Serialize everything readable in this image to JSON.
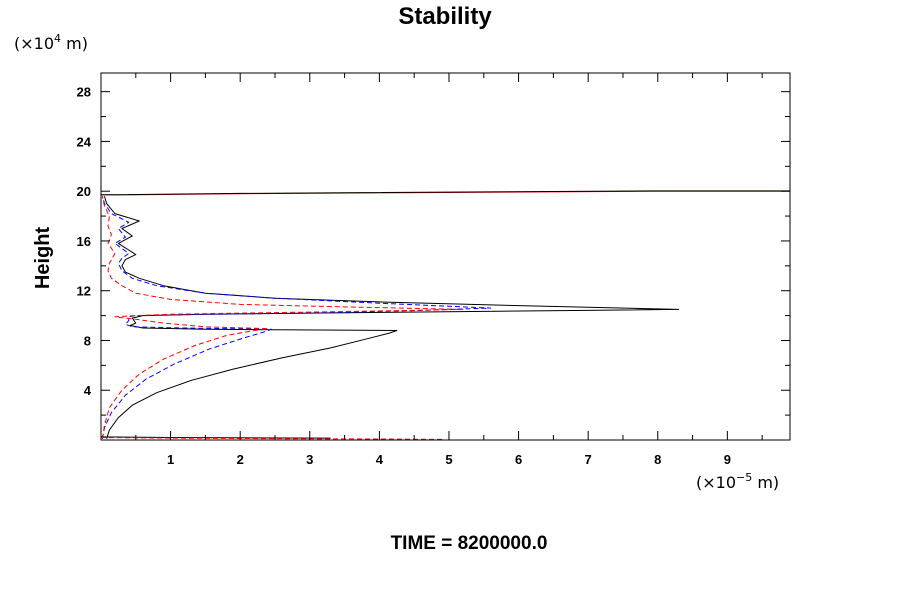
{
  "chart_data": {
    "type": "line",
    "title": "Stability",
    "ylabel": "Height",
    "xlabel": "",
    "y_unit_prefix": "(×10",
    "y_unit_exp": "4",
    "y_unit_suffix": " m)",
    "x_unit_prefix": "(×10",
    "x_unit_exp": "−5",
    "x_unit_suffix": " m)",
    "footer": "TIME = 8200000.0",
    "xlim": [
      0,
      9.9
    ],
    "ylim": [
      0,
      29.5
    ],
    "x_ticks": [
      1,
      2,
      3,
      4,
      5,
      6,
      7,
      8,
      9
    ],
    "y_ticks": [
      4,
      8,
      12,
      16,
      20,
      24,
      28
    ],
    "grid": false,
    "colors": {
      "black": "#000000",
      "blue": "#0000ff",
      "red": "#ff0000"
    },
    "series": [
      {
        "color": "#000000",
        "dash": "solid",
        "x": [
          0.08,
          0.12,
          0.25,
          0.45,
          0.8,
          1.3,
          1.9,
          2.6,
          3.3,
          3.8,
          4.15,
          4.25,
          1.5,
          0.6,
          0.42,
          0.5,
          0.45,
          0.6,
          1.5,
          3.0,
          4.8,
          6.6,
          8.3,
          6.0,
          4.0,
          2.5,
          1.5,
          0.9,
          0.55,
          0.35,
          0.3,
          0.35,
          0.5,
          0.25,
          0.45,
          0.3,
          0.55,
          0.2,
          0.08,
          0.05
        ],
        "y": [
          0.1,
          0.8,
          1.8,
          2.8,
          3.8,
          4.8,
          5.7,
          6.6,
          7.4,
          8.1,
          8.6,
          8.8,
          8.9,
          9.0,
          9.2,
          9.4,
          9.8,
          10.0,
          10.1,
          10.2,
          10.3,
          10.4,
          10.5,
          10.8,
          11.1,
          11.4,
          11.8,
          12.4,
          13.0,
          13.5,
          14.0,
          14.5,
          14.9,
          15.8,
          16.4,
          17.0,
          17.6,
          18.2,
          19.0,
          19.6
        ]
      },
      {
        "color": "#0000ff",
        "dash": "dashed",
        "x": [
          0.02,
          0.05,
          0.15,
          0.35,
          0.65,
          1.05,
          1.55,
          2.05,
          2.35,
          2.45,
          1.2,
          0.45,
          0.35,
          0.4,
          0.4,
          0.5,
          1.5,
          3.0,
          4.5,
          5.6,
          4.0,
          2.5,
          1.5,
          0.8,
          0.45,
          0.3,
          0.25,
          0.3,
          0.4,
          0.2,
          0.35,
          0.25,
          0.4,
          0.15,
          0.05,
          0.02
        ],
        "y": [
          0.1,
          1.0,
          2.2,
          3.6,
          4.9,
          6.1,
          7.3,
          8.2,
          8.7,
          8.9,
          9.0,
          9.1,
          9.3,
          9.6,
          9.9,
          10.0,
          10.1,
          10.2,
          10.4,
          10.6,
          11.0,
          11.4,
          11.8,
          12.4,
          13.0,
          13.6,
          14.2,
          14.6,
          15.0,
          15.8,
          16.3,
          17.0,
          17.5,
          18.2,
          19.0,
          19.6
        ]
      },
      {
        "color": "#ff0000",
        "dash": "dashed",
        "x": [
          0.02,
          0.05,
          0.12,
          0.3,
          0.55,
          0.9,
          1.35,
          1.8,
          2.2,
          2.4,
          1.5,
          0.9,
          0.5,
          0.2,
          0.5,
          1.0,
          2.0,
          3.2,
          4.3,
          5.2,
          3.5,
          2.0,
          1.0,
          0.5,
          0.3,
          0.15,
          0.1,
          0.12,
          0.2,
          0.1,
          0.15,
          0.1,
          0.12,
          0.05,
          0.02
        ],
        "y": [
          0.1,
          1.2,
          2.6,
          4.0,
          5.3,
          6.5,
          7.6,
          8.4,
          8.8,
          8.95,
          9.1,
          9.4,
          9.7,
          9.9,
          10.0,
          10.1,
          10.2,
          10.3,
          10.4,
          10.5,
          10.7,
          10.9,
          11.3,
          11.8,
          12.4,
          13.0,
          13.6,
          14.2,
          15.0,
          15.8,
          16.5,
          17.2,
          18.0,
          18.8,
          19.6
        ]
      },
      {
        "color": "#ff0000",
        "dash": "solid",
        "x": [
          0.0,
          0.25,
          2.0,
          8.0,
          9.9
        ],
        "y": [
          19.7,
          19.7,
          19.8,
          20.0,
          20.0
        ]
      },
      {
        "color": "#000000",
        "dash": "solid",
        "x": [
          0.0,
          0.25,
          2.0,
          8.0,
          9.9
        ],
        "y": [
          19.72,
          19.72,
          19.82,
          20.02,
          20.02
        ]
      },
      {
        "color": "#000000",
        "dash": "solid",
        "x": [
          0.0,
          1.0,
          3.3
        ],
        "y": [
          0.25,
          0.2,
          0.15
        ]
      },
      {
        "color": "#ff0000",
        "dash": "dashed",
        "x": [
          0.0,
          1.0,
          2.0,
          3.0,
          4.0,
          4.9
        ],
        "y": [
          0.2,
          0.15,
          0.12,
          0.1,
          0.08,
          0.05
        ]
      }
    ]
  }
}
